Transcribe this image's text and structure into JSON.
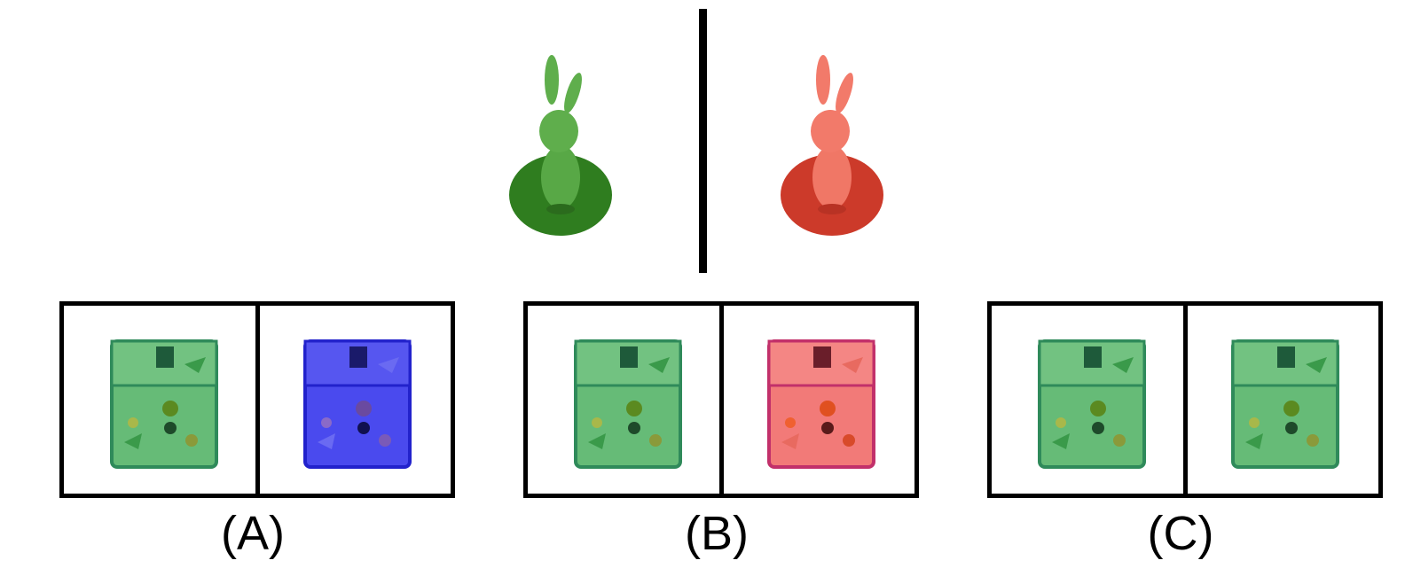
{
  "reference": {
    "left_figure": {
      "icon": "bunny-figurine-icon",
      "color": "#3e8f2f",
      "base_color": "#2f7d1f"
    },
    "right_figure": {
      "icon": "bunny-figurine-icon",
      "color": "#ee5a4a",
      "base_color": "#cc3a2a"
    }
  },
  "options": [
    {
      "label": "(A)",
      "left_bag_color": "#66bb77",
      "right_bag_color": "#4a4aee"
    },
    {
      "label": "(B)",
      "left_bag_color": "#66bb77",
      "right_bag_color": "#f27a78"
    },
    {
      "label": "(C)",
      "left_bag_color": "#66bb77",
      "right_bag_color": "#66bb77"
    }
  ]
}
